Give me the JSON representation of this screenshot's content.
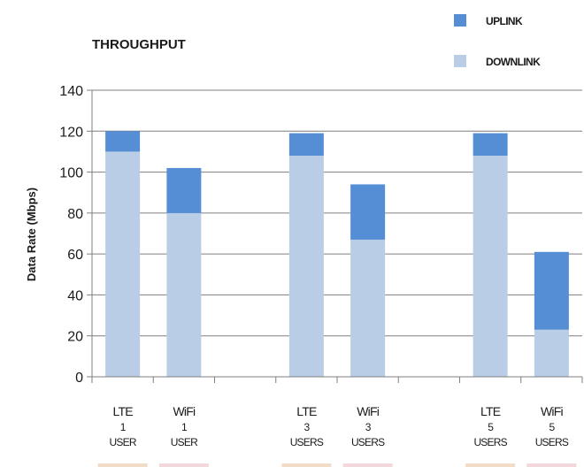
{
  "chart_data": {
    "type": "bar",
    "stacked": true,
    "title": "THROUGHPUT",
    "ylabel": "Data Rate (Mbps)",
    "xlabel": "",
    "ylim": [
      0,
      140
    ],
    "yticks": [
      0,
      20,
      40,
      60,
      80,
      100,
      120,
      140
    ],
    "grid": true,
    "legend_position": "top-right",
    "slots": [
      {
        "label": [
          "LTE",
          "1",
          "USER"
        ],
        "downlink": 110,
        "uplink": 10
      },
      {
        "label": [
          "WiFi",
          "1",
          "USER"
        ],
        "downlink": 80,
        "uplink": 22
      },
      {
        "label": null
      },
      {
        "label": [
          "LTE",
          "3",
          "USERS"
        ],
        "downlink": 108,
        "uplink": 11
      },
      {
        "label": [
          "WiFi",
          "3",
          "USERS"
        ],
        "downlink": 67,
        "uplink": 27
      },
      {
        "label": null
      },
      {
        "label": [
          "LTE",
          "5",
          "USERS"
        ],
        "downlink": 108,
        "uplink": 11
      },
      {
        "label": [
          "WiFi",
          "5",
          "USERS"
        ],
        "downlink": 23,
        "uplink": 38
      }
    ],
    "series": [
      {
        "name": "DOWNLINK",
        "key": "downlink",
        "color": "#b9cde6"
      },
      {
        "name": "UPLINK",
        "key": "uplink",
        "color": "#558ed5"
      }
    ],
    "legend": [
      {
        "name": "UPLINK",
        "color": "#558ed5"
      },
      {
        "name": "DOWNLINK",
        "color": "#b9cde6"
      }
    ],
    "swatch_colors": {
      "lte": "#f2dcc8",
      "wifi": "#f2d7dc"
    },
    "grid_color": "#7f7f7f"
  }
}
